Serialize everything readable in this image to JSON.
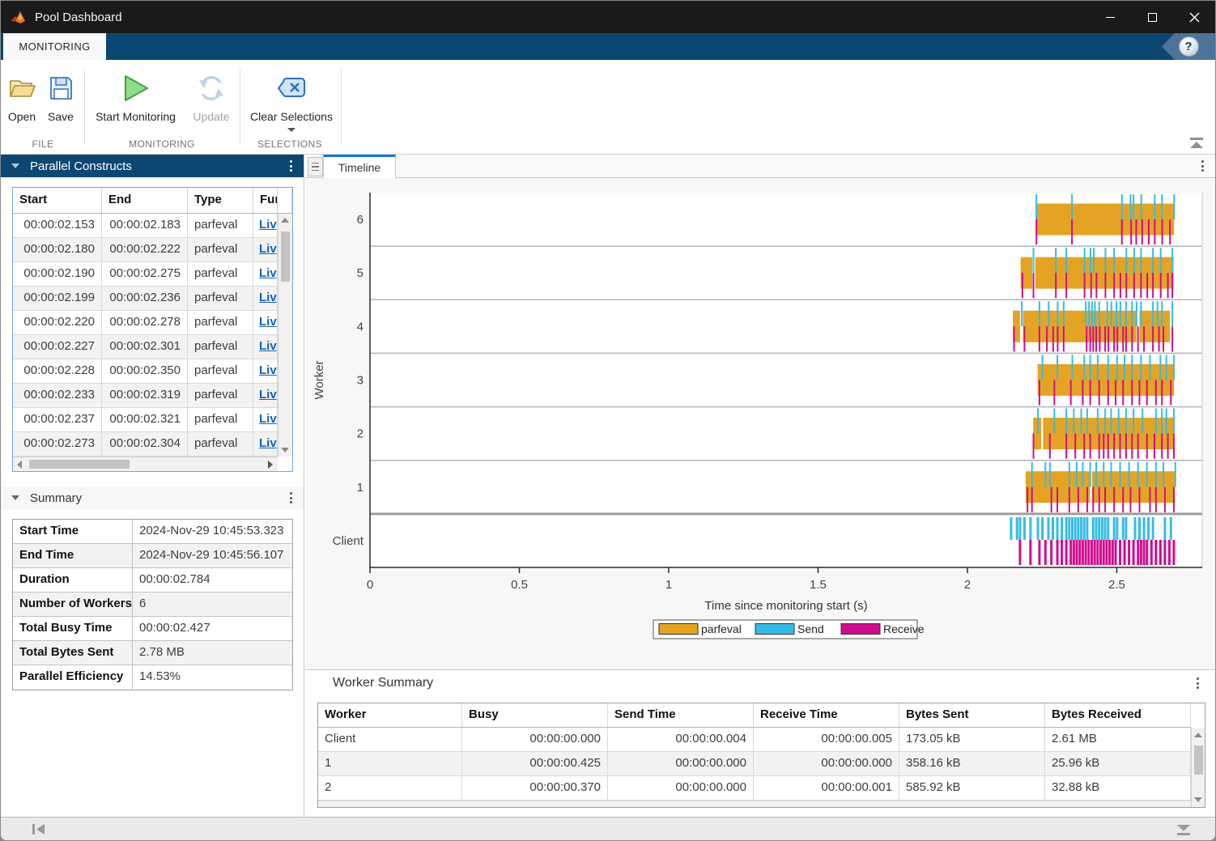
{
  "window": {
    "title": "Pool Dashboard"
  },
  "ribbon": {
    "active_tab": "MONITORING",
    "help_label": "?",
    "groups": [
      {
        "label": "FILE",
        "buttons": [
          {
            "label": "Open",
            "icon": "folder-open-icon",
            "enabled": true
          },
          {
            "label": "Save",
            "icon": "save-icon",
            "enabled": true
          }
        ]
      },
      {
        "label": "MONITORING",
        "buttons": [
          {
            "label": "Start Monitoring",
            "icon": "play-icon",
            "enabled": true
          },
          {
            "label": "Update",
            "icon": "refresh-icon",
            "enabled": false
          }
        ]
      },
      {
        "label": "SELECTIONS",
        "buttons": [
          {
            "label": "Clear Selections",
            "icon": "clear-selections-icon",
            "enabled": true,
            "has_dropdown": true
          }
        ]
      }
    ]
  },
  "constructs": {
    "title": "Parallel Constructs",
    "columns": [
      "Start",
      "End",
      "Type",
      "Fun"
    ],
    "rows": [
      {
        "start": "00:00:02.153",
        "end": "00:00:02.183",
        "type": "parfeval",
        "fun": "Liv"
      },
      {
        "start": "00:00:02.180",
        "end": "00:00:02.222",
        "type": "parfeval",
        "fun": "Liv"
      },
      {
        "start": "00:00:02.190",
        "end": "00:00:02.275",
        "type": "parfeval",
        "fun": "Liv"
      },
      {
        "start": "00:00:02.199",
        "end": "00:00:02.236",
        "type": "parfeval",
        "fun": "Liv"
      },
      {
        "start": "00:00:02.220",
        "end": "00:00:02.278",
        "type": "parfeval",
        "fun": "Liv"
      },
      {
        "start": "00:00:02.227",
        "end": "00:00:02.301",
        "type": "parfeval",
        "fun": "Liv"
      },
      {
        "start": "00:00:02.228",
        "end": "00:00:02.350",
        "type": "parfeval",
        "fun": "Liv"
      },
      {
        "start": "00:00:02.233",
        "end": "00:00:02.319",
        "type": "parfeval",
        "fun": "Liv"
      },
      {
        "start": "00:00:02.237",
        "end": "00:00:02.321",
        "type": "parfeval",
        "fun": "Liv"
      },
      {
        "start": "00:00:02.273",
        "end": "00:00:02.304",
        "type": "parfeval",
        "fun": "Liv"
      }
    ]
  },
  "summary": {
    "title": "Summary",
    "rows": [
      {
        "label": "Start Time",
        "value": "2024-Nov-29 10:45:53.323"
      },
      {
        "label": "End Time",
        "value": "2024-Nov-29 10:45:56.107"
      },
      {
        "label": "Duration",
        "value": "00:00:02.784"
      },
      {
        "label": "Number of Workers",
        "value": "6"
      },
      {
        "label": "Total Busy Time",
        "value": "00:00:02.427"
      },
      {
        "label": "Total Bytes Sent",
        "value": "2.78 MB"
      },
      {
        "label": "Parallel Efficiency",
        "value": "14.53%"
      }
    ]
  },
  "timeline": {
    "tab_label": "Timeline",
    "ylabel": "Worker",
    "xlabel": "Time since monitoring start (s)",
    "x_ticks": [
      0,
      0.5,
      1,
      1.5,
      2,
      2.5
    ],
    "x_max": 2.786,
    "colors": {
      "parfeval": "#E5A323",
      "send": "#35BCE6",
      "receive": "#CE0D8F"
    },
    "legend": [
      {
        "label": "parfeval",
        "color": "#E5A323"
      },
      {
        "label": "Send",
        "color": "#35BCE6"
      },
      {
        "label": "Receive",
        "color": "#CE0D8F"
      }
    ],
    "rows": [
      {
        "label": "6",
        "bars": [
          [
            2.228,
            2.692
          ]
        ],
        "send": [
          2.231,
          2.35,
          2.517,
          2.546,
          2.556,
          2.582,
          2.627,
          2.651,
          2.692
        ],
        "receive": [
          2.231,
          2.35,
          2.517,
          2.548,
          2.565,
          2.585,
          2.607,
          2.627,
          2.652,
          2.678
        ]
      },
      {
        "label": "5",
        "bars": [
          [
            2.178,
            2.217
          ],
          [
            2.227,
            2.69
          ]
        ],
        "send": [
          2.221,
          2.296,
          2.331,
          2.392,
          2.412,
          2.423,
          2.462,
          2.491,
          2.532,
          2.558,
          2.581,
          2.621,
          2.647,
          2.686
        ],
        "receive": [
          2.184,
          2.221,
          2.296,
          2.331,
          2.392,
          2.414,
          2.432,
          2.462,
          2.491,
          2.512,
          2.532,
          2.558,
          2.581,
          2.602,
          2.621,
          2.647,
          2.671,
          2.686
        ]
      },
      {
        "label": "4",
        "bars": [
          [
            2.152,
            2.176
          ],
          [
            2.186,
            2.566
          ],
          [
            2.576,
            2.678
          ]
        ],
        "send": [
          2.182,
          2.241,
          2.272,
          2.302,
          2.322,
          2.396,
          2.407,
          2.417,
          2.427,
          2.441,
          2.468,
          2.482,
          2.499,
          2.512,
          2.531,
          2.551,
          2.566,
          2.581,
          2.621,
          2.636,
          2.651,
          2.686
        ],
        "receive": [
          2.156,
          2.191,
          2.241,
          2.266,
          2.287,
          2.302,
          2.322,
          2.399,
          2.411,
          2.421,
          2.431,
          2.443,
          2.461,
          2.472,
          2.491,
          2.502,
          2.521,
          2.531,
          2.551,
          2.571,
          2.591,
          2.621,
          2.641,
          2.656,
          2.686
        ]
      },
      {
        "label": "3",
        "bars": [
          [
            2.235,
            2.692
          ]
        ],
        "send": [
          2.251,
          2.301,
          2.351,
          2.391,
          2.411,
          2.436,
          2.471,
          2.501,
          2.526,
          2.551,
          2.581,
          2.611,
          2.646,
          2.666,
          2.691
        ],
        "receive": [
          2.241,
          2.291,
          2.346,
          2.386,
          2.411,
          2.441,
          2.471,
          2.496,
          2.521,
          2.551,
          2.576,
          2.601,
          2.631,
          2.651,
          2.681
        ]
      },
      {
        "label": "2",
        "bars": [
          [
            2.22,
            2.247
          ],
          [
            2.253,
            2.69
          ]
        ],
        "send": [
          2.236,
          2.291,
          2.331,
          2.356,
          2.381,
          2.401,
          2.436,
          2.461,
          2.481,
          2.506,
          2.531,
          2.556,
          2.586,
          2.631,
          2.651,
          2.666,
          2.691
        ],
        "receive": [
          2.221,
          2.276,
          2.331,
          2.361,
          2.391,
          2.411,
          2.441,
          2.456,
          2.471,
          2.491,
          2.511,
          2.531,
          2.551,
          2.571,
          2.601,
          2.626,
          2.651,
          2.671,
          2.691
        ]
      },
      {
        "label": "1",
        "bars": [
          [
            2.195,
            2.41
          ],
          [
            2.417,
            2.695
          ]
        ],
        "send": [
          2.216,
          2.261,
          2.276,
          2.341,
          2.366,
          2.386,
          2.411,
          2.431,
          2.456,
          2.481,
          2.511,
          2.541,
          2.571,
          2.601,
          2.631,
          2.656,
          2.696
        ],
        "receive": [
          2.201,
          2.216,
          2.281,
          2.301,
          2.341,
          2.371,
          2.401,
          2.421,
          2.441,
          2.461,
          2.491,
          2.521,
          2.546,
          2.576,
          2.611,
          2.631,
          2.661,
          2.691
        ]
      },
      {
        "label": "Client",
        "thick": true,
        "bars": [],
        "send": [
          2.146,
          2.166,
          2.176,
          2.191,
          2.211,
          2.236,
          2.251,
          2.271,
          2.286,
          2.301,
          2.316,
          2.331,
          2.341,
          2.351,
          2.361,
          2.371,
          2.381,
          2.391,
          2.401,
          2.421,
          2.431,
          2.441,
          2.451,
          2.461,
          2.471,
          2.491,
          2.501,
          2.521,
          2.531,
          2.561,
          2.576,
          2.591,
          2.606,
          2.621,
          2.661,
          2.681
        ],
        "receive": [
          2.176,
          2.211,
          2.241,
          2.261,
          2.281,
          2.301,
          2.316,
          2.331,
          2.346,
          2.356,
          2.366,
          2.376,
          2.386,
          2.396,
          2.406,
          2.416,
          2.426,
          2.436,
          2.446,
          2.456,
          2.466,
          2.476,
          2.486,
          2.496,
          2.511,
          2.526,
          2.541,
          2.556,
          2.571,
          2.581,
          2.591,
          2.601,
          2.616,
          2.631,
          2.646,
          2.661,
          2.676,
          2.691
        ]
      }
    ]
  },
  "worker_summary": {
    "title": "Worker Summary",
    "columns": [
      "Worker",
      "Busy",
      "Send Time",
      "Receive Time",
      "Bytes Sent",
      "Bytes Received"
    ],
    "rows": [
      [
        "Client",
        "00:00:00.000",
        "00:00:00.004",
        "00:00:00.005",
        "173.05 kB",
        "2.61 MB"
      ],
      [
        "1",
        "00:00:00.425",
        "00:00:00.000",
        "00:00:00.000",
        "358.16 kB",
        "25.96 kB"
      ],
      [
        "2",
        "00:00:00.370",
        "00:00:00.000",
        "00:00:00.001",
        "585.92 kB",
        "32.88 kB"
      ]
    ]
  }
}
